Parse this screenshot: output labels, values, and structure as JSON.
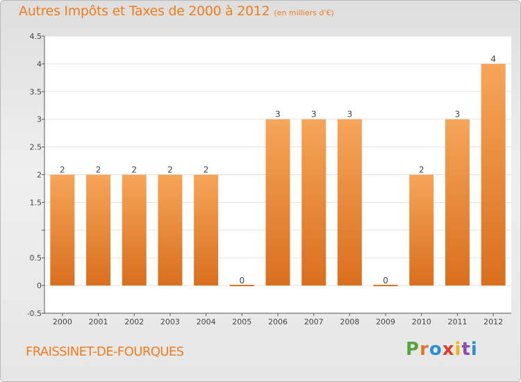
{
  "header": {
    "title": "Autres Impôts et Taxes de 2000 à 2012",
    "subtitle": "(en milliers d'€)"
  },
  "commune": "FRAISSINET-DE-FOURQUES",
  "logo": {
    "text": "Proxiti",
    "letter_colors": [
      "#5aa23c",
      "#e8722a",
      "#2b8fd4",
      "#e23b2b",
      "#f0b412",
      "#8a4bb2",
      "#2b8fd4"
    ]
  },
  "colors": {
    "bar_light": "#f6a55a",
    "bar_dark": "#d96f1e",
    "title": "#ef7d1d",
    "plot_background": "#ffffff",
    "gridline": "#e2e2e2"
  },
  "chart_data": {
    "type": "bar",
    "title": "Autres Impôts et Taxes de 2000 à 2012",
    "subtitle": "(en milliers d'€)",
    "categories": [
      "2000",
      "2001",
      "2002",
      "2003",
      "2004",
      "2005",
      "2006",
      "2007",
      "2008",
      "2009",
      "2010",
      "2011",
      "2012"
    ],
    "values": [
      2,
      2,
      2,
      2,
      2,
      0,
      3,
      3,
      3,
      0,
      2,
      3,
      4
    ],
    "data_labels": [
      "2",
      "2",
      "2",
      "2",
      "2",
      "0",
      "3",
      "3",
      "3",
      "0",
      "2",
      "3",
      "4"
    ],
    "ylim": [
      -0.5,
      4.5
    ],
    "yticks": [
      -0.5,
      0,
      0.5,
      1,
      1.5,
      2,
      2.5,
      3,
      3.5,
      4,
      4.5
    ],
    "ytick_labels": [
      "-0.5",
      "0",
      "0.5",
      "",
      "1.5",
      "2",
      "2.5",
      "3",
      "3.5",
      "4",
      "4.5"
    ],
    "xlabel": "",
    "ylabel": "",
    "grid": true,
    "legend": "none"
  }
}
